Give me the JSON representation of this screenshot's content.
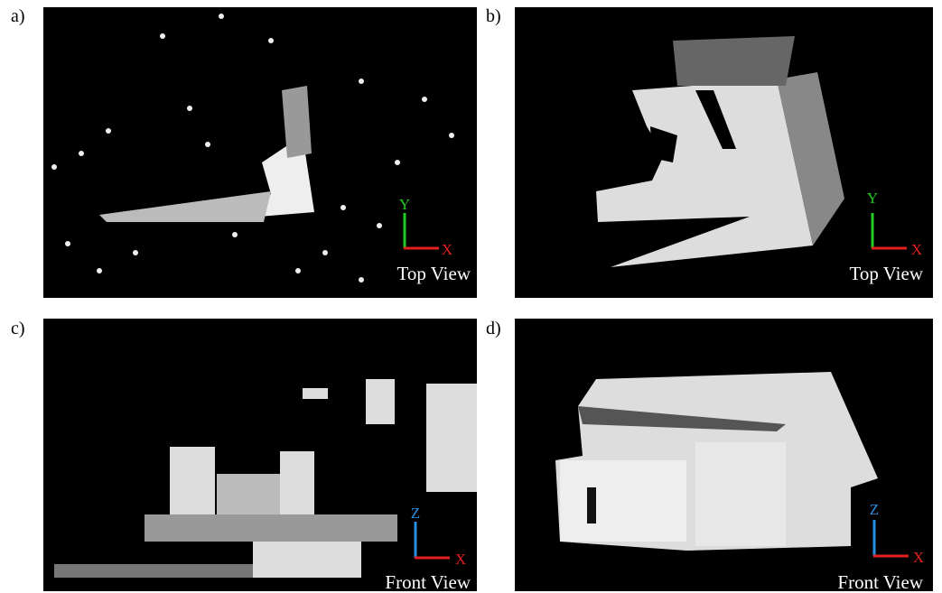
{
  "panels": [
    {
      "label": "a)",
      "caption": "Top View",
      "axes": {
        "vertical": "Y",
        "horizontal": "X"
      }
    },
    {
      "label": "b)",
      "caption": "Top View",
      "axes": {
        "vertical": "Y",
        "horizontal": "X"
      }
    },
    {
      "label": "c)",
      "caption": "Front View",
      "axes": {
        "vertical": "Z",
        "horizontal": "X"
      }
    },
    {
      "label": "d)",
      "caption": "Front View",
      "axes": {
        "vertical": "Z",
        "horizontal": "X"
      }
    }
  ]
}
